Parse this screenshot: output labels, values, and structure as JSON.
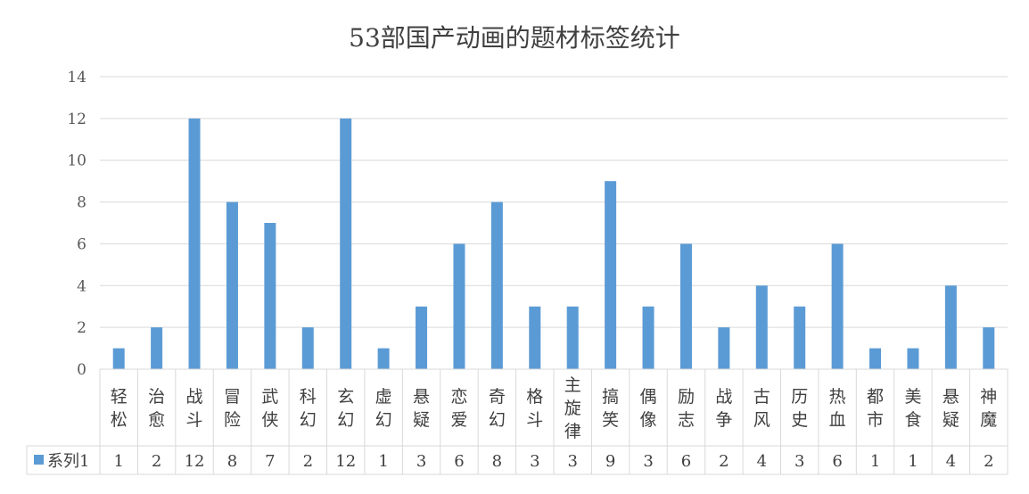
{
  "chart_data": {
    "type": "bar",
    "title": "53部国产动画的题材标签统计",
    "xlabel": "",
    "ylabel": "",
    "ylim": [
      0,
      14
    ],
    "yticks": [
      0,
      2,
      4,
      6,
      8,
      10,
      12,
      14
    ],
    "grid": true,
    "legend": "data-table-left",
    "categories": [
      "轻松",
      "治愈",
      "战斗",
      "冒险",
      "武侠",
      "科幻",
      "玄幻",
      "虚幻",
      "悬疑",
      "恋爱",
      "奇幻",
      "格斗",
      "主旋律",
      "搞笑",
      "偶像",
      "励志",
      "战争",
      "古风",
      "历史",
      "热血",
      "都市",
      "美食",
      "悬疑",
      "神魔"
    ],
    "series": [
      {
        "name": "系列1",
        "color": "#5b9bd5",
        "values": [
          1,
          2,
          12,
          8,
          7,
          2,
          12,
          1,
          3,
          6,
          8,
          3,
          3,
          9,
          3,
          6,
          2,
          4,
          3,
          6,
          1,
          1,
          4,
          2
        ]
      }
    ]
  }
}
